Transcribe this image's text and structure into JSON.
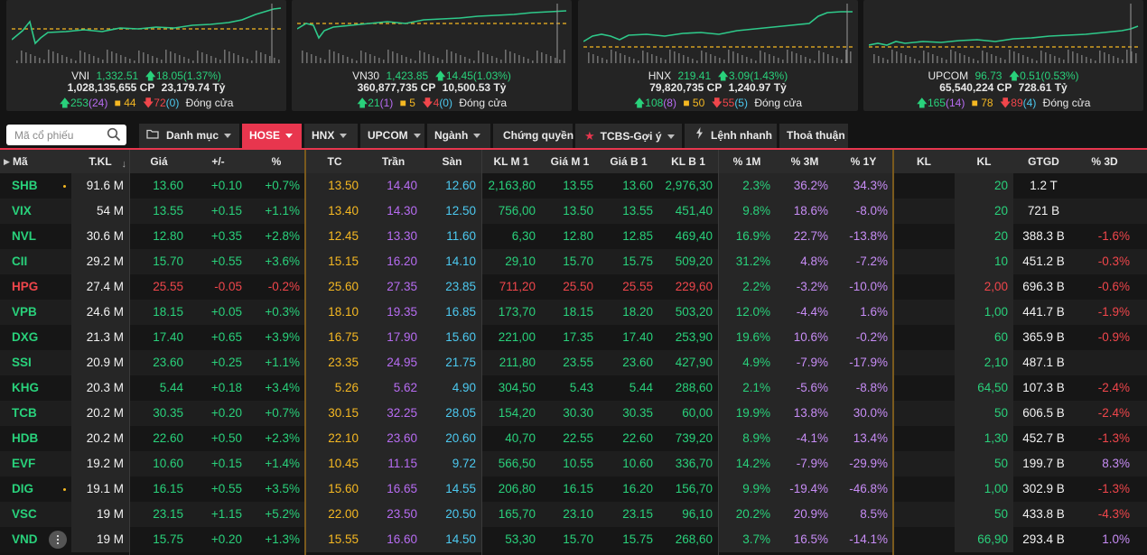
{
  "indices": [
    {
      "name": "VNI",
      "value": "1,332.51",
      "change": "18.05(1.37%)",
      "volume": "1,028,135,655",
      "vol_unit": "CP",
      "gtgd": "23,179.74",
      "gtgd_unit": "Tỷ",
      "up": "253",
      "ceil": "(24)",
      "flat": "44",
      "down": "72",
      "floor": "(0)",
      "status": "Đóng cửa"
    },
    {
      "name": "VN30",
      "value": "1,423.85",
      "change": "14.45(1.03%)",
      "volume": "360,877,735",
      "vol_unit": "CP",
      "gtgd": "10,500.53",
      "gtgd_unit": "Tỷ",
      "up": "21",
      "ceil": "(1)",
      "flat": "5",
      "down": "4",
      "floor": "(0)",
      "status": "Đóng cửa"
    },
    {
      "name": "HNX",
      "value": "219.41",
      "change": "3.09(1.43%)",
      "volume": "79,820,735",
      "vol_unit": "CP",
      "gtgd": "1,240.97",
      "gtgd_unit": "Tỷ",
      "up": "108",
      "ceil": "(8)",
      "flat": "50",
      "down": "55",
      "floor": "(5)",
      "status": "Đóng cửa"
    },
    {
      "name": "UPCOM",
      "value": "96.73",
      "change": "0.51(0.53%)",
      "volume": "65,540,224",
      "vol_unit": "CP",
      "gtgd": "728.61",
      "gtgd_unit": "Tỷ",
      "up": "165",
      "ceil": "(14)",
      "flat": "78",
      "down": "89",
      "floor": "(4)",
      "status": "Đóng cửa"
    }
  ],
  "search": {
    "placeholder": "Mã cổ phiếu"
  },
  "tabs": [
    "Danh mục",
    "HOSE",
    "HNX",
    "UPCOM",
    "Ngành",
    "Chứng quyền",
    "TCBS-Gợi ý",
    "Lệnh nhanh",
    "Thoả thuận"
  ],
  "headers": [
    "Mã",
    "T.KL",
    "Giá",
    "+/-",
    "%",
    "TC",
    "Trần",
    "Sàn",
    "KL M 1",
    "Giá M 1",
    "Giá B 1",
    "KL B 1",
    "% 1M",
    "% 3M",
    "% 1Y",
    "KL",
    "KL",
    "GTGD",
    "% 3D"
  ],
  "rows": [
    [
      "SHB",
      "91.6 M",
      "13.60",
      "+0.10",
      "+0.7%",
      "13.50",
      "14.40",
      "12.60",
      "2,163,80",
      "13.55",
      "13.60",
      "2,976,30",
      "2.3%",
      "36.2%",
      "34.3%",
      "",
      "20",
      "1.2 T",
      ""
    ],
    [
      "VIX",
      "54 M",
      "13.55",
      "+0.15",
      "+1.1%",
      "13.40",
      "14.30",
      "12.50",
      "756,00",
      "13.50",
      "13.55",
      "451,40",
      "9.8%",
      "18.6%",
      "-8.0%",
      "",
      "20",
      "721 B",
      ""
    ],
    [
      "NVL",
      "30.6 M",
      "12.80",
      "+0.35",
      "+2.8%",
      "12.45",
      "13.30",
      "11.60",
      "6,30",
      "12.80",
      "12.85",
      "469,40",
      "16.9%",
      "22.7%",
      "-13.8%",
      "",
      "20",
      "388.3 B",
      "-1.6%"
    ],
    [
      "CII",
      "29.2 M",
      "15.70",
      "+0.55",
      "+3.6%",
      "15.15",
      "16.20",
      "14.10",
      "29,10",
      "15.70",
      "15.75",
      "509,20",
      "31.2%",
      "4.8%",
      "-7.2%",
      "",
      "10",
      "451.2 B",
      "-0.3%"
    ],
    [
      "HPG",
      "27.4 M",
      "25.55",
      "-0.05",
      "-0.2%",
      "25.60",
      "27.35",
      "23.85",
      "711,20",
      "25.50",
      "25.55",
      "229,60",
      "2.2%",
      "-3.2%",
      "-10.0%",
      "",
      "2,00",
      "696.3 B",
      "-0.6%"
    ],
    [
      "VPB",
      "24.6 M",
      "18.15",
      "+0.05",
      "+0.3%",
      "18.10",
      "19.35",
      "16.85",
      "173,70",
      "18.15",
      "18.20",
      "503,20",
      "12.0%",
      "-4.4%",
      "1.6%",
      "",
      "1,00",
      "441.7 B",
      "-1.9%"
    ],
    [
      "DXG",
      "21.3 M",
      "17.40",
      "+0.65",
      "+3.9%",
      "16.75",
      "17.90",
      "15.60",
      "221,00",
      "17.35",
      "17.40",
      "253,90",
      "19.6%",
      "10.6%",
      "-0.2%",
      "",
      "60",
      "365.9 B",
      "-0.9%"
    ],
    [
      "SSI",
      "20.9 M",
      "23.60",
      "+0.25",
      "+1.1%",
      "23.35",
      "24.95",
      "21.75",
      "211,80",
      "23.55",
      "23.60",
      "427,90",
      "4.9%",
      "-7.9%",
      "-17.9%",
      "",
      "2,10",
      "487.1 B",
      ""
    ],
    [
      "KHG",
      "20.3 M",
      "5.44",
      "+0.18",
      "+3.4%",
      "5.26",
      "5.62",
      "4.90",
      "304,50",
      "5.43",
      "5.44",
      "288,60",
      "2.1%",
      "-5.6%",
      "-8.8%",
      "",
      "64,50",
      "107.3 B",
      "-2.4%"
    ],
    [
      "TCB",
      "20.2 M",
      "30.35",
      "+0.20",
      "+0.7%",
      "30.15",
      "32.25",
      "28.05",
      "154,20",
      "30.30",
      "30.35",
      "60,00",
      "19.9%",
      "13.8%",
      "30.0%",
      "",
      "50",
      "606.5 B",
      "-2.4%"
    ],
    [
      "HDB",
      "20.2 M",
      "22.60",
      "+0.50",
      "+2.3%",
      "22.10",
      "23.60",
      "20.60",
      "40,70",
      "22.55",
      "22.60",
      "739,20",
      "8.9%",
      "-4.1%",
      "13.4%",
      "",
      "1,30",
      "452.7 B",
      "-1.3%"
    ],
    [
      "EVF",
      "19.2 M",
      "10.60",
      "+0.15",
      "+1.4%",
      "10.45",
      "11.15",
      "9.72",
      "566,50",
      "10.55",
      "10.60",
      "336,70",
      "14.2%",
      "-7.9%",
      "-29.9%",
      "",
      "50",
      "199.7 B",
      "8.3%"
    ],
    [
      "DIG",
      "19.1 M",
      "16.15",
      "+0.55",
      "+3.5%",
      "15.60",
      "16.65",
      "14.55",
      "206,80",
      "16.15",
      "16.20",
      "156,70",
      "9.9%",
      "-19.4%",
      "-46.8%",
      "",
      "1,00",
      "302.9 B",
      "-1.3%"
    ],
    [
      "VSC",
      "19 M",
      "23.15",
      "+1.15",
      "+5.2%",
      "22.00",
      "23.50",
      "20.50",
      "165,70",
      "23.10",
      "23.15",
      "96,10",
      "20.2%",
      "20.9%",
      "8.5%",
      "",
      "50",
      "433.8 B",
      "-4.3%"
    ],
    [
      "VND",
      "19 M",
      "15.75",
      "+0.20",
      "+1.3%",
      "15.55",
      "16.60",
      "14.50",
      "53,30",
      "15.70",
      "15.75",
      "268,60",
      "3.7%",
      "16.5%",
      "-14.1%",
      "",
      "66,90",
      "293.4 B",
      "1.0%"
    ]
  ],
  "colors": {
    "up": "#29d17b",
    "down": "#f0464b",
    "ref": "#f5b822",
    "ceil": "#b76cf2",
    "floor": "#4cc9f0",
    "accent": "#e8364e"
  }
}
